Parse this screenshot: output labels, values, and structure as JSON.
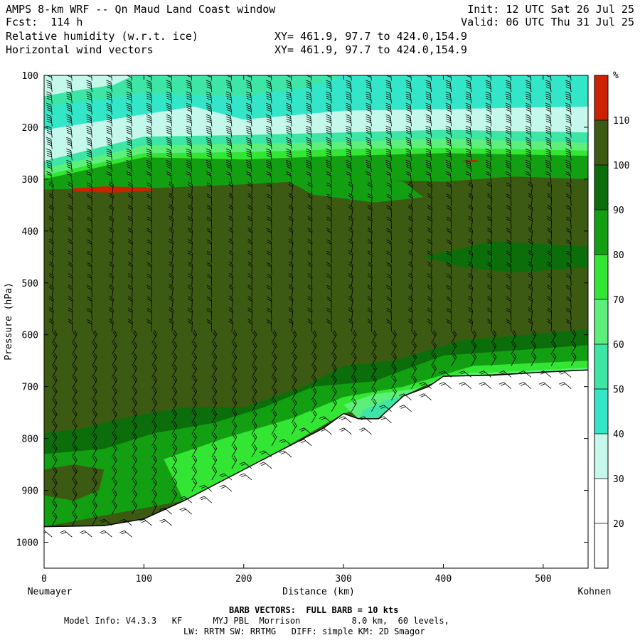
{
  "header": {
    "line1_left": "AMPS 8-km WRF -- Qn Maud Land Coast window",
    "line2_left": "Fcst:  114 h",
    "line3_left": "Relative humidity (w.r.t. ice)",
    "line4_left": "Horizontal wind vectors",
    "line1_right": "Init: 12 UTC Sat 26 Jul 25",
    "line2_right": "Valid: 06 UTC Thu 31 Jul 25",
    "xy_line3": "XY= 461.9, 97.7 to 424.0,154.9",
    "xy_line4": "XY= 461.9, 97.7 to 424.0,154.9"
  },
  "footer": {
    "barb_note": "BARB VECTORS:  FULL BARB = 10 kts",
    "model_info": "Model Info: V4.3.3   KF      MYJ PBL  Morrison          8.0 km,  60 levels,",
    "physics": "LW: RRTM SW: RRTMG   DIFF: simple KM: 2D Smagor"
  },
  "colors": {
    "dark_olive": "#3d5a12",
    "dark_green": "#0b6e0b",
    "green": "#12a012",
    "bright_green": "#33e633",
    "light_green": "#5cf07a",
    "mint": "#3ee6a6",
    "cyan": "#33e6c8",
    "pale_cyan": "#c4f8ea",
    "red": "#cc2200",
    "white": "#ffffff"
  },
  "chart_data": {
    "type": "contour cross-section",
    "ylabel": "Pressure (hPa)",
    "xlabel": "Distance (km)",
    "x_start_label": "Neumayer",
    "x_end_label": "Kohnen",
    "xlim": [
      0,
      545
    ],
    "ylim": [
      1050,
      100
    ],
    "x_ticks": [
      0,
      100,
      200,
      300,
      400,
      500
    ],
    "y_ticks": [
      100,
      200,
      300,
      400,
      500,
      600,
      700,
      800,
      900,
      1000
    ],
    "colorbar": {
      "unit": "%",
      "levels": [
        20,
        30,
        40,
        50,
        60,
        70,
        80,
        90,
        100,
        110
      ],
      "bands": [
        {
          "range": "<20",
          "color": "#ffffff"
        },
        {
          "range": "20-30",
          "color": "#ffffff"
        },
        {
          "range": "30-40",
          "color": "#c4f8ea"
        },
        {
          "range": "40-50",
          "color": "#33e6c8"
        },
        {
          "range": "50-60",
          "color": "#3ee6a6"
        },
        {
          "range": "60-70",
          "color": "#5cf07a"
        },
        {
          "range": "70-80",
          "color": "#33e633"
        },
        {
          "range": "80-90",
          "color": "#12a012"
        },
        {
          "range": "90-100",
          "color": "#0b6e0b"
        },
        {
          "range": "100-110",
          "color": "#3d5a12"
        },
        {
          "range": ">110",
          "color": "#cc2200"
        }
      ]
    },
    "terrain_surface": [
      {
        "x": 0,
        "p": 970
      },
      {
        "x": 60,
        "p": 968
      },
      {
        "x": 100,
        "p": 955
      },
      {
        "x": 140,
        "p": 920
      },
      {
        "x": 180,
        "p": 880
      },
      {
        "x": 230,
        "p": 830
      },
      {
        "x": 260,
        "p": 800
      },
      {
        "x": 280,
        "p": 780
      },
      {
        "x": 300,
        "p": 752
      },
      {
        "x": 315,
        "p": 762
      },
      {
        "x": 335,
        "p": 762
      },
      {
        "x": 360,
        "p": 718
      },
      {
        "x": 385,
        "p": 700
      },
      {
        "x": 400,
        "p": 680
      },
      {
        "x": 450,
        "p": 678
      },
      {
        "x": 500,
        "p": 672
      },
      {
        "x": 545,
        "p": 668
      }
    ]
  }
}
